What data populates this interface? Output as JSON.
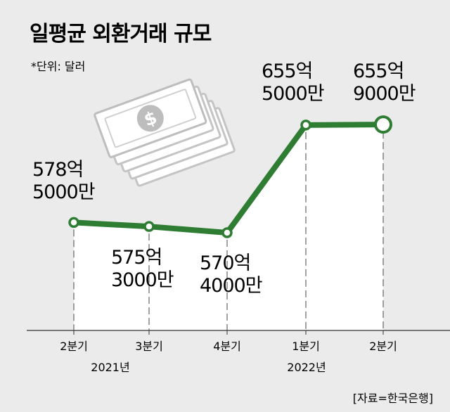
{
  "title": "일평균 외환거래 규모",
  "unit_note": "*단위: 달러",
  "source": "[자료=한국은행]",
  "colors": {
    "line": "#2e7d32",
    "background": "#ebebeb",
    "plot_area": "#ffffff",
    "icon": "#c8c8c8"
  },
  "icon": "dollar-bills-icon",
  "chart_data": {
    "type": "line",
    "categories": [
      "2분기",
      "3분기",
      "4분기",
      "1분기",
      "2분기"
    ],
    "year_labels": [
      "2021년",
      "2022년"
    ],
    "values": [
      578.5,
      575.3,
      570.4,
      655.5,
      655.9
    ],
    "data_labels": [
      [
        "578억",
        "5000만"
      ],
      [
        "575억",
        "3000만"
      ],
      [
        "570억",
        "4000만"
      ],
      [
        "655억",
        "5000만"
      ],
      [
        "655억",
        "9000만"
      ]
    ],
    "unit": "억 달러",
    "grid": false,
    "legend": "none"
  }
}
